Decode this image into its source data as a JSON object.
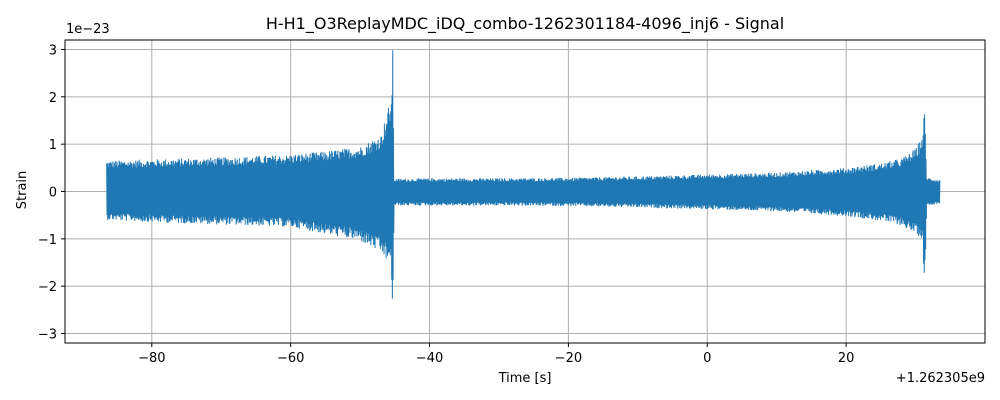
{
  "chart_data": {
    "type": "line",
    "title": "H-H1_O3ReplayMDC_iDQ_combo-1262301184-4096_inj6 - Signal",
    "xlabel": "Time [s]",
    "ylabel": "Strain",
    "x_offset_label": "+1.262305e9",
    "y_scale_label": "1e−23",
    "xlim": [
      -92.5,
      40
    ],
    "ylim": [
      -3.2,
      3.2
    ],
    "xticks": [
      -80,
      -60,
      -40,
      -20,
      0,
      20
    ],
    "xtick_labels": [
      "−80",
      "−60",
      "−40",
      "−20",
      "0",
      "20"
    ],
    "yticks": [
      -3,
      -2,
      -1,
      0,
      1,
      2,
      3
    ],
    "ytick_labels": [
      "−3",
      "−2",
      "−1",
      "0",
      "1",
      "2",
      "3"
    ],
    "grid": true,
    "color": "#1f77b4",
    "series": [
      {
        "envelope_x": [
          -86.5,
          -80,
          -70,
          -60,
          -55,
          -50,
          -47,
          -45.5,
          -45.3,
          -45.1,
          -40,
          -30,
          -20,
          -10,
          0,
          10,
          20,
          25,
          28,
          30,
          31,
          31.3,
          31.6,
          33.5
        ],
        "envelope_top": [
          0.65,
          0.68,
          0.72,
          0.78,
          0.85,
          0.95,
          1.2,
          2.0,
          3.0,
          0.27,
          0.28,
          0.28,
          0.29,
          0.32,
          0.36,
          0.4,
          0.5,
          0.6,
          0.7,
          0.9,
          1.2,
          1.75,
          0.3,
          0.25
        ],
        "envelope_bottom": [
          -0.6,
          -0.65,
          -0.7,
          -0.75,
          -0.9,
          -1.05,
          -1.3,
          -1.6,
          -2.85,
          -0.3,
          -0.3,
          -0.3,
          -0.31,
          -0.34,
          -0.38,
          -0.42,
          -0.52,
          -0.62,
          -0.72,
          -0.9,
          -1.0,
          -2.15,
          -0.3,
          -0.25
        ]
      }
    ]
  }
}
